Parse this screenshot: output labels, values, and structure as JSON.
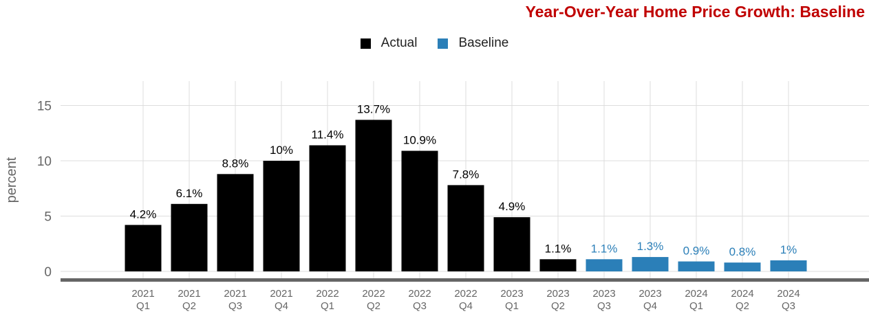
{
  "chart_data": {
    "type": "bar",
    "title": "Year-Over-Year Home Price Growth: Baseline",
    "ylabel": "percent",
    "xlabel": "",
    "ylim": [
      0,
      17
    ],
    "yticks": [
      0,
      5,
      10,
      15
    ],
    "grid": true,
    "legend_position": "top-center",
    "colors": {
      "Actual": "#000000",
      "Baseline": "#2b7fb8",
      "title": "#c00000",
      "axis": "#666666",
      "grid": "#dddddd"
    },
    "categories": [
      "2021 Q1",
      "2021 Q2",
      "2021 Q3",
      "2021 Q4",
      "2022 Q1",
      "2022 Q2",
      "2022 Q3",
      "2022 Q4",
      "2023 Q1",
      "2023 Q2",
      "2023 Q3",
      "2023 Q4",
      "2024 Q1",
      "2024 Q2",
      "2024 Q3"
    ],
    "series": [
      {
        "name": "Actual",
        "values": [
          4.2,
          6.1,
          8.8,
          10,
          11.4,
          13.7,
          10.9,
          7.8,
          4.9,
          1.1,
          null,
          null,
          null,
          null,
          null
        ]
      },
      {
        "name": "Baseline",
        "values": [
          null,
          null,
          null,
          null,
          null,
          null,
          null,
          null,
          null,
          null,
          1.1,
          1.3,
          0.9,
          0.8,
          1
        ]
      }
    ],
    "data_labels": [
      "4.2%",
      "6.1%",
      "8.8%",
      "10%",
      "11.4%",
      "13.7%",
      "10.9%",
      "7.8%",
      "4.9%",
      "1.1%",
      "1.1%",
      "1.3%",
      "0.9%",
      "0.8%",
      "1%"
    ]
  }
}
